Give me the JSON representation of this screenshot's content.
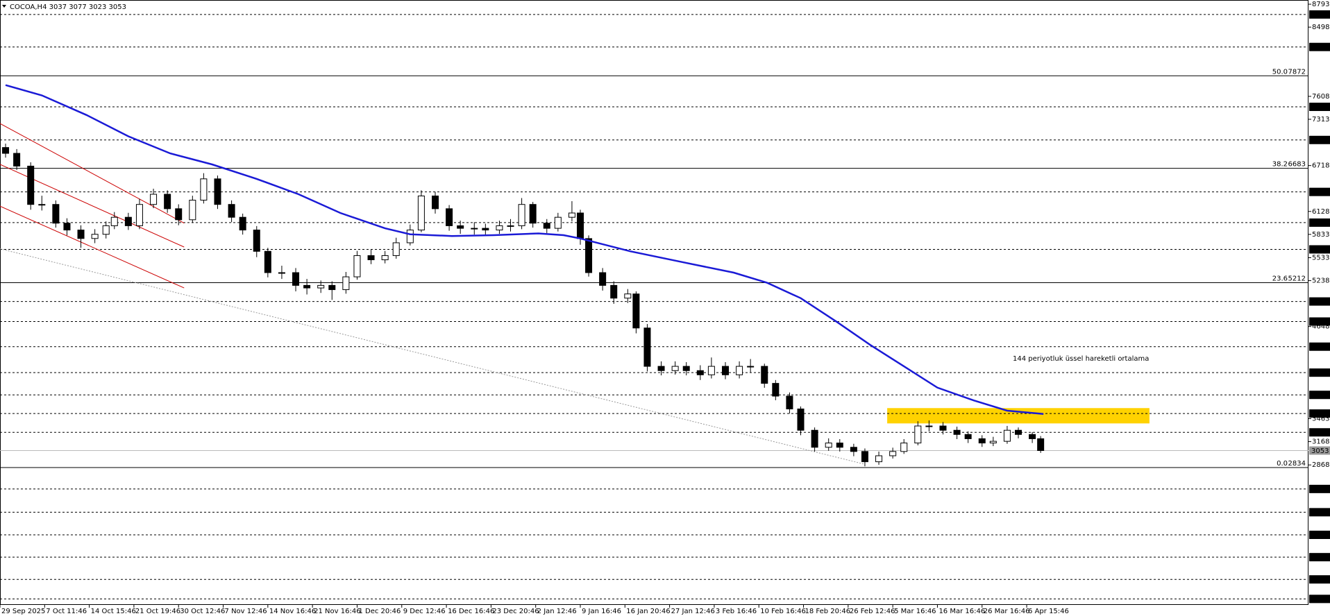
{
  "chart_data": {
    "type": "candlestick",
    "title": "COCOA,H4  3037 3077 3023 3053",
    "xlim": [
      0,
      469
    ],
    "ylim": [
      1068,
      8847
    ],
    "xticks": [
      {
        "value": 0,
        "label": "29 Sep 2025"
      },
      {
        "value": 16,
        "label": "7 Oct 11:46"
      },
      {
        "value": 32,
        "label": "14 Oct 15:46"
      },
      {
        "value": 48,
        "label": "21 Oct 19:46"
      },
      {
        "value": 64,
        "label": "30 Oct 12:46"
      },
      {
        "value": 80,
        "label": "7 Nov 12:46"
      },
      {
        "value": 96,
        "label": "14 Nov 16:46"
      },
      {
        "value": 112,
        "label": "21 Nov 16:46"
      },
      {
        "value": 128,
        "label": "1 Dec 20:46"
      },
      {
        "value": 144,
        "label": "9 Dec 12:46"
      },
      {
        "value": 160,
        "label": "16 Dec 16:46"
      },
      {
        "value": 176,
        "label": "23 Dec 20:46"
      },
      {
        "value": 192,
        "label": "2 Jan 12:46"
      },
      {
        "value": 208,
        "label": "9 Jan 16:46"
      },
      {
        "value": 224,
        "label": "16 Jan 20:46"
      },
      {
        "value": 240,
        "label": "27 Jan 12:46"
      },
      {
        "value": 256,
        "label": "3 Feb 16:46"
      },
      {
        "value": 272,
        "label": "10 Feb 16:46"
      },
      {
        "value": 288,
        "label": "18 Feb 20:46"
      },
      {
        "value": 304,
        "label": "26 Feb 12:46"
      },
      {
        "value": 320,
        "label": "5 Mar 16:46"
      },
      {
        "value": 336,
        "label": "16 Mar 16:46"
      },
      {
        "value": 352,
        "label": "26 Mar 16:46"
      },
      {
        "value": 368,
        "label": "6 Apr 15:46"
      }
    ],
    "yticks": [
      8793,
      8498,
      7608,
      7313,
      6718,
      6128,
      5833,
      5533,
      5238,
      4648,
      3463,
      3168,
      2868
    ],
    "x": [
      2,
      6,
      11,
      15,
      20,
      24,
      29,
      34,
      38,
      41,
      46,
      50,
      55,
      60,
      64,
      69,
      73,
      78,
      83,
      87,
      92,
      96,
      101,
      106,
      110,
      115,
      119,
      124,
      128,
      133,
      138,
      142,
      147,
      151,
      156,
      161,
      165,
      170,
      174,
      179,
      183,
      187,
      191,
      196,
      200,
      205,
      208,
      211,
      216,
      220,
      225,
      228,
      232,
      237,
      242,
      246,
      251,
      255,
      260,
      265,
      269,
      274,
      278,
      283,
      287,
      292,
      297,
      301,
      306,
      310,
      315,
      320,
      324,
      329,
      333,
      338,
      343,
      347,
      352,
      356,
      361,
      365,
      370,
      373
    ],
    "open": [
      6950,
      6875,
      6711,
      6218,
      6218,
      5977,
      5889,
      5780,
      5834,
      5944,
      6053,
      5944,
      6218,
      6349,
      6163,
      6021,
      6273,
      6547,
      6218,
      6053,
      5889,
      5615,
      5341,
      5341,
      5177,
      5144,
      5177,
      5122,
      5287,
      5560,
      5506,
      5560,
      5725,
      5889,
      6327,
      6163,
      5944,
      5911,
      5911,
      5889,
      5944,
      5944,
      6218,
      5977,
      5911,
      6053,
      6108,
      5779,
      5341,
      5177,
      5013,
      5067,
      4629,
      4136,
      4081,
      4136,
      4081,
      4027,
      4136,
      4027,
      4136,
      4136,
      3917,
      3753,
      3588,
      3314,
      3095,
      3150,
      3095,
      3041,
      2909,
      2986,
      3041,
      3150,
      3369,
      3369,
      3314,
      3260,
      3205,
      3150,
      3172,
      3314,
      3260,
      3205
    ],
    "high": [
      7000,
      6930,
      6760,
      6330,
      6270,
      6040,
      5950,
      5900,
      6000,
      6120,
      6110,
      6290,
      6420,
      6400,
      6220,
      6330,
      6620,
      6590,
      6270,
      6100,
      5940,
      5660,
      5430,
      5400,
      5260,
      5240,
      5230,
      5350,
      5620,
      5640,
      5620,
      5790,
      5960,
      6400,
      6380,
      6210,
      6010,
      5990,
      5970,
      6010,
      6030,
      6300,
      6250,
      6030,
      6110,
      6260,
      6150,
      5820,
      5400,
      5230,
      5130,
      5100,
      4680,
      4200,
      4200,
      4190,
      4150,
      4250,
      4190,
      4200,
      4230,
      4170,
      3960,
      3800,
      3620,
      3350,
      3210,
      3200,
      3140,
      3080,
      3040,
      3090,
      3200,
      3430,
      3440,
      3420,
      3360,
      3300,
      3250,
      3230,
      3370,
      3350,
      3290,
      3240
    ],
    "low": [
      6820,
      6660,
      6150,
      6140,
      5920,
      5820,
      5660,
      5720,
      5780,
      5900,
      5890,
      5900,
      6170,
      6110,
      5950,
      5980,
      6230,
      6160,
      5990,
      5830,
      5540,
      5280,
      5260,
      5100,
      5060,
      5080,
      4990,
      5070,
      5250,
      5450,
      5460,
      5520,
      5690,
      5860,
      6100,
      5880,
      5840,
      5830,
      5820,
      5840,
      5870,
      5900,
      5920,
      5850,
      5870,
      6000,
      5700,
      5290,
      5110,
      4940,
      4950,
      4560,
      4070,
      4020,
      4030,
      4020,
      3960,
      3980,
      3970,
      3980,
      4060,
      3860,
      3700,
      3530,
      3250,
      3040,
      3050,
      3040,
      2980,
      2850,
      2870,
      2950,
      3010,
      3120,
      3300,
      3260,
      3200,
      3150,
      3100,
      3110,
      3140,
      3210,
      3150,
      3023
    ],
    "close": [
      6875,
      6711,
      6218,
      6218,
      5977,
      5889,
      5780,
      5834,
      5944,
      6053,
      5944,
      6218,
      6349,
      6163,
      6021,
      6273,
      6547,
      6218,
      6053,
      5889,
      5615,
      5341,
      5341,
      5177,
      5144,
      5177,
      5122,
      5287,
      5560,
      5506,
      5560,
      5725,
      5889,
      6327,
      6163,
      5944,
      5911,
      5911,
      5889,
      5944,
      5944,
      6218,
      5977,
      5911,
      6053,
      6108,
      5779,
      5341,
      5177,
      5013,
      5067,
      4629,
      4136,
      4081,
      4136,
      4081,
      4027,
      4136,
      4027,
      4136,
      4136,
      3917,
      3753,
      3588,
      3314,
      3095,
      3150,
      3095,
      3041,
      2909,
      2986,
      3041,
      3150,
      3369,
      3369,
      3314,
      3260,
      3205,
      3150,
      3172,
      3314,
      3260,
      3205,
      3053
    ],
    "ema": {
      "color": "#1a1ad6",
      "x": [
        2,
        15,
        31,
        46,
        61,
        76,
        92,
        107,
        122,
        138,
        147,
        162,
        177,
        193,
        202,
        208,
        226,
        245,
        263,
        275,
        287,
        300,
        312,
        324,
        336,
        349,
        361,
        374
      ],
      "values": [
        7752,
        7620,
        7368,
        7094,
        6875,
        6733,
        6546,
        6349,
        6108,
        5911,
        5834,
        5812,
        5823,
        5845,
        5823,
        5780,
        5615,
        5473,
        5341,
        5210,
        5013,
        4706,
        4410,
        4136,
        3862,
        3698,
        3566,
        3523
      ]
    },
    "annotation": "144 periyotluk üssel hareketli ortalama",
    "annotation_color": "#1a1ad6",
    "levels": [
      8661,
      8243,
      7473,
      7047,
      6379,
      5984,
      5640,
      4970,
      4712,
      4389,
      4055,
      3769,
      3529,
      3287,
      2559,
      2260,
      1969,
      1682,
      1396,
      1145
    ],
    "current_price": 3053,
    "fibo": [
      {
        "label": "50.0",
        "value": 7872
      },
      {
        "label": "38.2",
        "value": 6683
      },
      {
        "label": "23.6",
        "value": 5212
      },
      {
        "label": "0.0",
        "value": 2834
      }
    ],
    "channel_color": "#cc0000",
    "channel": [
      {
        "x": [
          0,
          66
        ],
        "values": [
          7259,
          5977
        ]
      },
      {
        "x": [
          0,
          66
        ],
        "values": [
          6733,
          5670
        ]
      },
      {
        "x": [
          0,
          66
        ],
        "values": [
          6196,
          5144
        ]
      }
    ],
    "trendline": {
      "color": "#999999",
      "x": [
        0,
        310
      ],
      "values": [
        5648,
        2876
      ]
    },
    "zone": {
      "color": "#ffd200",
      "x": [
        318,
        412
      ],
      "values": [
        3599,
        3402
      ]
    }
  }
}
